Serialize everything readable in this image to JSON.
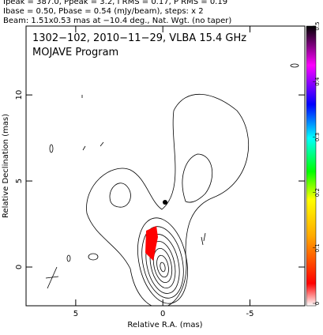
{
  "chart_data": {
    "type": "contour",
    "header": [
      "Ipeak = 387.0, Ppeak = 3.2, I RMS = 0.17, P RMS = 0.19",
      "Ibase = 0.50, Pbase = 0.54 (mJy/beam), steps: x 2",
      "Beam: 1.51x0.53 mas at −10.4 deg., Nat. Wgt. (no taper)"
    ],
    "title": "1302−102, 2010−11−29, VLBA 15.4 GHz",
    "subtitle": "MOJAVE Program",
    "xlabel": "Relative R.A. (mas)",
    "ylabel": "Relative Declination (mas)",
    "xlim": [
      7.85,
      -8.15
    ],
    "xticks": [
      5,
      0,
      -5
    ],
    "ylim": [
      -2.25,
      14
    ],
    "yticks": [
      0,
      5,
      10
    ],
    "colorbar": {
      "lim": [
        0,
        0.5
      ],
      "ticks": [
        0,
        0.1,
        0.2,
        0.3,
        0.4,
        0.5
      ]
    }
  }
}
